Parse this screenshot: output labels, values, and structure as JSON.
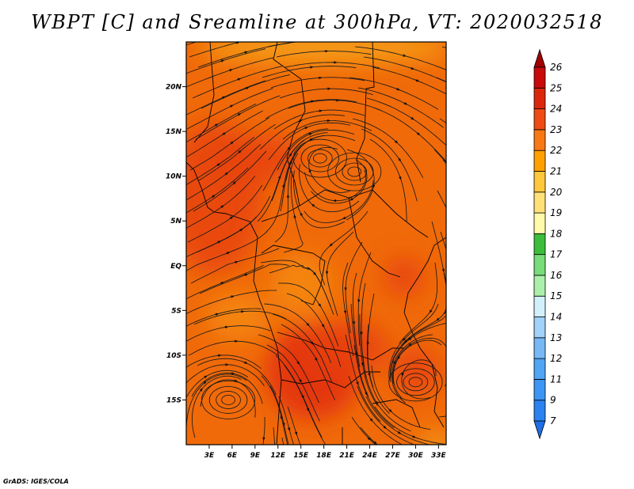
{
  "title": "WBPT [C] and Sreamline at 300hPa, VT: 2020032518",
  "footer": "GrADS: IGES/COLA",
  "map": {
    "lon_range": [
      0,
      34
    ],
    "lat_range": [
      -20,
      25
    ],
    "lat_ticks": [
      {
        "value": 20,
        "label": "20N"
      },
      {
        "value": 15,
        "label": "15N"
      },
      {
        "value": 10,
        "label": "10N"
      },
      {
        "value": 5,
        "label": "5N"
      },
      {
        "value": 0,
        "label": "EQ"
      },
      {
        "value": -5,
        "label": "5S"
      },
      {
        "value": -10,
        "label": "10S"
      },
      {
        "value": -15,
        "label": "15S"
      }
    ],
    "lon_ticks": [
      {
        "value": 3,
        "label": "3E"
      },
      {
        "value": 6,
        "label": "6E"
      },
      {
        "value": 9,
        "label": "9E"
      },
      {
        "value": 12,
        "label": "12E"
      },
      {
        "value": 15,
        "label": "15E"
      },
      {
        "value": 18,
        "label": "18E"
      },
      {
        "value": 21,
        "label": "21E"
      },
      {
        "value": 24,
        "label": "24E"
      },
      {
        "value": 27,
        "label": "27E"
      },
      {
        "value": 30,
        "label": "30E"
      },
      {
        "value": 33,
        "label": "33E"
      }
    ],
    "vortices": [
      {
        "name": "cyclonic circulation near 18E 12N",
        "lon": 17.5,
        "lat": 12
      },
      {
        "name": "circulation near 22E 10N",
        "lon": 22,
        "lat": 10.5
      },
      {
        "name": "cyclonic circulation near 6E 15S",
        "lon": 5.5,
        "lat": -15
      },
      {
        "name": "anticyclonic circulation near 30E 13S",
        "lon": 30,
        "lat": -13
      }
    ]
  },
  "colorbar": {
    "levels": [
      "7",
      "9",
      "11",
      "12",
      "13",
      "14",
      "15",
      "16",
      "17",
      "18",
      "19",
      "20",
      "21",
      "22",
      "23",
      "24",
      "25",
      "26"
    ],
    "colors": [
      "#1e6ee6",
      "#2b82f0",
      "#3c96f5",
      "#50a5f5",
      "#78b9f5",
      "#a0d2fa",
      "#d2f0fa",
      "#aaf0aa",
      "#78dc78",
      "#3cbe3c",
      "#fffaaa",
      "#ffe178",
      "#ffc83c",
      "#ffa000",
      "#fa7814",
      "#f04b14",
      "#dc280a",
      "#c80a0a",
      "#a00000"
    ]
  },
  "colors": {
    "base": "#f06a0a",
    "warm": "#e8420e",
    "hot": "#e23010",
    "cool": "#f58c0a",
    "cooler": "#f5a018"
  }
}
